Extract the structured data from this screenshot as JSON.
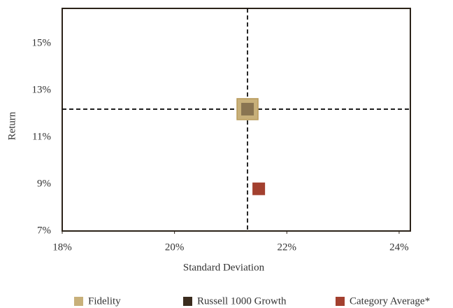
{
  "chart_data": {
    "type": "scatter",
    "x_label": "Standard Deviation",
    "y_label": "Return",
    "xlim": [
      18,
      24.2
    ],
    "ylim": [
      7,
      16.5
    ],
    "xticks": [
      {
        "value": 18,
        "label": "18%"
      },
      {
        "value": 20,
        "label": "20%"
      },
      {
        "value": 22,
        "label": "22%"
      },
      {
        "value": 24,
        "label": "24%"
      }
    ],
    "yticks": [
      {
        "value": 7,
        "label": "7%"
      },
      {
        "value": 9,
        "label": "9%"
      },
      {
        "value": 11,
        "label": "11%"
      },
      {
        "value": 13,
        "label": "13%"
      },
      {
        "value": 15,
        "label": "15%"
      }
    ],
    "series": [
      {
        "name": "Fidelity",
        "color": "#c8b07a",
        "x": [
          21.3
        ],
        "values": [
          12.2
        ]
      },
      {
        "name": "Russell 1000 Growth",
        "color": "#3b2c1e",
        "x": [
          21.3
        ],
        "values": [
          12.2
        ]
      },
      {
        "name": "Category Average*",
        "color": "#a3402f",
        "x": [
          21.5
        ],
        "values": [
          8.8
        ]
      }
    ]
  }
}
